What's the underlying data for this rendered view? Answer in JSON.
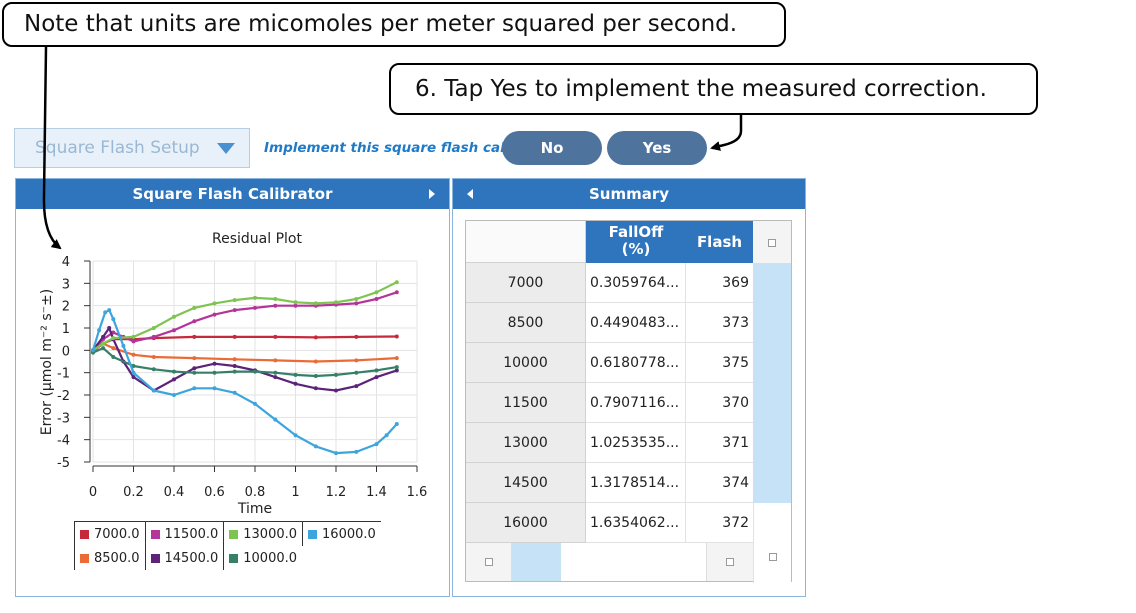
{
  "callouts": {
    "note": "Note that units are micomoles per meter squared per second.",
    "step": "6. Tap Yes to implement the measured correction."
  },
  "toolbar": {
    "setup_dropdown": "Square Flash Setup",
    "question": "Implement this square flash cal?",
    "no_label": "No",
    "yes_label": "Yes"
  },
  "left_panel": {
    "title": "Square Flash Calibrator"
  },
  "right_panel": {
    "title": "Summary"
  },
  "colors": {
    "header_blue": "#2f75bd",
    "pill": "#4e739c",
    "question": "#1f7ac7",
    "scroll": "#c5e2f6"
  },
  "chart_data": {
    "type": "line",
    "title": "Residual Plot",
    "xlabel": "Time",
    "ylabel": "Error (µmol m⁻² s⁻±)",
    "xlim": [
      0,
      1.6
    ],
    "ylim": [
      -5,
      4
    ],
    "xticks": [
      "0",
      "0.2",
      "0.4",
      "0.6",
      "0.8",
      "1",
      "1.2",
      "1.4",
      "1.6"
    ],
    "yticks": [
      "4",
      "3",
      "2",
      "1",
      "0",
      "-1",
      "-2",
      "-3",
      "-4",
      "-5"
    ],
    "grid": true,
    "legend_position": "bottom",
    "series": [
      {
        "name": "7000.0",
        "color": "#c62a3a",
        "x": [
          0,
          0.05,
          0.1,
          0.2,
          0.3,
          0.5,
          0.7,
          0.9,
          1.1,
          1.3,
          1.5
        ],
        "y": [
          -0.05,
          0.3,
          0.5,
          0.5,
          0.55,
          0.6,
          0.6,
          0.6,
          0.58,
          0.6,
          0.62
        ]
      },
      {
        "name": "8500.0",
        "color": "#ea6b36",
        "x": [
          0,
          0.05,
          0.1,
          0.2,
          0.3,
          0.5,
          0.7,
          0.9,
          1.1,
          1.3,
          1.5
        ],
        "y": [
          0,
          0.3,
          0.1,
          -0.2,
          -0.3,
          -0.35,
          -0.4,
          -0.45,
          -0.5,
          -0.45,
          -0.35
        ]
      },
      {
        "name": "11500.0",
        "color": "#b4349a",
        "x": [
          0,
          0.05,
          0.1,
          0.15,
          0.2,
          0.3,
          0.4,
          0.5,
          0.6,
          0.7,
          0.8,
          0.9,
          1.0,
          1.1,
          1.2,
          1.3,
          1.4,
          1.5
        ],
        "y": [
          0,
          0.5,
          0.8,
          0.6,
          0.4,
          0.6,
          0.9,
          1.3,
          1.6,
          1.8,
          1.9,
          2.0,
          2.0,
          2.0,
          2.05,
          2.1,
          2.3,
          2.6
        ]
      },
      {
        "name": "14500.0",
        "color": "#5c2378",
        "x": [
          0,
          0.05,
          0.08,
          0.1,
          0.15,
          0.2,
          0.3,
          0.4,
          0.5,
          0.6,
          0.7,
          0.8,
          0.9,
          1.0,
          1.1,
          1.2,
          1.3,
          1.4,
          1.5
        ],
        "y": [
          0,
          0.6,
          1.0,
          0.5,
          -0.5,
          -1.2,
          -1.8,
          -1.3,
          -0.8,
          -0.6,
          -0.7,
          -0.9,
          -1.2,
          -1.5,
          -1.7,
          -1.8,
          -1.6,
          -1.2,
          -0.9
        ]
      },
      {
        "name": "13000.0",
        "color": "#7ec450",
        "x": [
          0,
          0.05,
          0.1,
          0.2,
          0.3,
          0.4,
          0.5,
          0.6,
          0.7,
          0.8,
          0.9,
          1.0,
          1.1,
          1.2,
          1.3,
          1.4,
          1.5
        ],
        "y": [
          0,
          0.3,
          0.55,
          0.6,
          1.0,
          1.5,
          1.9,
          2.1,
          2.25,
          2.35,
          2.3,
          2.15,
          2.1,
          2.15,
          2.3,
          2.6,
          3.05
        ]
      },
      {
        "name": "10000.0",
        "color": "#36806a",
        "x": [
          0,
          0.05,
          0.1,
          0.2,
          0.3,
          0.4,
          0.5,
          0.6,
          0.7,
          0.8,
          0.9,
          1.0,
          1.1,
          1.2,
          1.3,
          1.4,
          1.5
        ],
        "y": [
          -0.1,
          0.1,
          -0.3,
          -0.7,
          -0.85,
          -0.95,
          -1.0,
          -1.0,
          -0.95,
          -0.95,
          -1.0,
          -1.1,
          -1.15,
          -1.1,
          -1.0,
          -0.9,
          -0.75
        ]
      },
      {
        "name": "16000.0",
        "color": "#3ea4de",
        "x": [
          0,
          0.03,
          0.06,
          0.08,
          0.1,
          0.15,
          0.2,
          0.3,
          0.4,
          0.5,
          0.6,
          0.7,
          0.8,
          0.9,
          1.0,
          1.1,
          1.2,
          1.3,
          1.4,
          1.45,
          1.5
        ],
        "y": [
          0,
          0.9,
          1.7,
          1.8,
          1.4,
          0.2,
          -1.0,
          -1.8,
          -2.0,
          -1.7,
          -1.7,
          -1.9,
          -2.4,
          -3.1,
          -3.8,
          -4.3,
          -4.6,
          -4.55,
          -4.2,
          -3.8,
          -3.3
        ]
      }
    ]
  },
  "summary": {
    "columns": [
      "",
      "FallOff\n(%)",
      "Flash"
    ],
    "rows": [
      {
        "key": "7000",
        "falloff": "0.3059764...",
        "flash": "369"
      },
      {
        "key": "8500",
        "falloff": "0.4490483...",
        "flash": "373"
      },
      {
        "key": "10000",
        "falloff": "0.6180778...",
        "flash": "375"
      },
      {
        "key": "11500",
        "falloff": "0.7907116...",
        "flash": "370"
      },
      {
        "key": "13000",
        "falloff": "1.0253535...",
        "flash": "371"
      },
      {
        "key": "14500",
        "falloff": "1.3178514...",
        "flash": "374"
      },
      {
        "key": "16000",
        "falloff": "1.6354062...",
        "flash": "372"
      }
    ]
  },
  "legend_layout": [
    [
      "7000.0",
      "11500.0",
      "13000.0",
      "16000.0"
    ],
    [
      "8500.0",
      "14500.0",
      "10000.0"
    ]
  ]
}
